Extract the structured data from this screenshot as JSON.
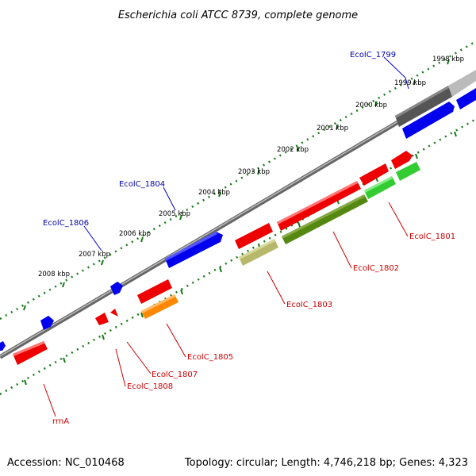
{
  "title": "Escherichia coli ATCC 8739, complete genome",
  "accession_text": "Accession: NC_010468",
  "summary_text": "Topology: circular; Length: 4,746,218 bp; Genes: 4,323",
  "colors": {
    "backbone": "#888888",
    "tick_ring": "#1a7a1a",
    "label_blue": "#0000aa",
    "label_red": "#cc0000",
    "leader": "#cc0000",
    "leader_blue": "#0000cc"
  },
  "scale_labels": [
    "1998 kbp",
    "1999 kbp",
    "2000 kbp",
    "2001 kbp",
    "2002 kbp",
    "2003 kbp",
    "2004 kbp",
    "2005 kbp",
    "2006 kbp",
    "2007 kbp",
    "2008 kbp"
  ],
  "gene_labels": [
    {
      "text": "EcolC_1799",
      "color": "#0000aa"
    },
    {
      "text": "EcolC_1804",
      "color": "#0000aa"
    },
    {
      "text": "EcolC_1806",
      "color": "#0000aa"
    },
    {
      "text": "EcolC_1801",
      "color": "#cc0000"
    },
    {
      "text": "EcolC_1802",
      "color": "#cc0000"
    },
    {
      "text": "EcolC_1803",
      "color": "#cc0000"
    },
    {
      "text": "EcolC_1805",
      "color": "#cc0000"
    },
    {
      "text": "EcolC_1807",
      "color": "#cc0000"
    },
    {
      "text": "EcolC_1808",
      "color": "#cc0000"
    },
    {
      "text": "rrnA",
      "color": "#cc0000"
    }
  ],
  "feature_colors": {
    "forward_cds": "#0000ee",
    "reverse_cds": "#ee0000",
    "gray": "#555555",
    "light_gray": "#bbbbbb",
    "green": "#33cc33",
    "olive": "#558811",
    "khaki": "#b8b86a",
    "orange": "#ff8800"
  }
}
